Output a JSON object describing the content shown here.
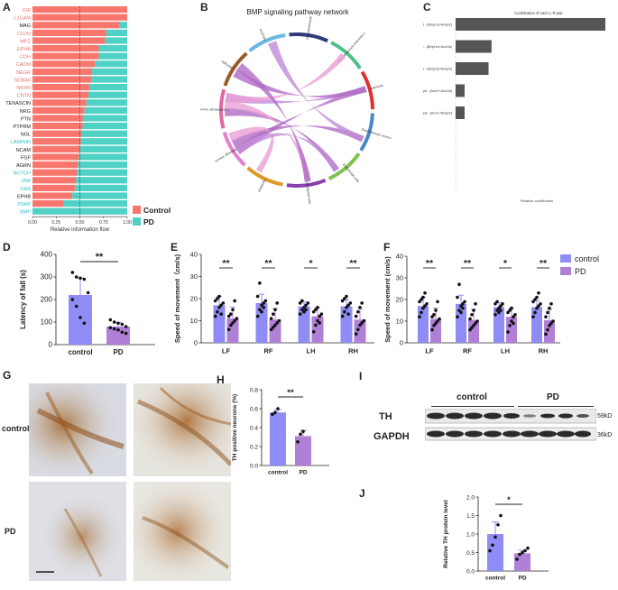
{
  "panels": {
    "A": "A",
    "B": "B",
    "C": "C",
    "D": "D",
    "E": "E",
    "F": "F",
    "G": "G",
    "H": "H",
    "I": "I",
    "J": "J"
  },
  "colors": {
    "control": "#f8766d",
    "pd": "#4fd1c5",
    "control_bar": "#8f8cf5",
    "pd_bar": "#b07fd6",
    "dark_bar": "#555555",
    "stain": "#b5732a"
  },
  "chart_data": [
    {
      "id": "A",
      "type": "bar",
      "orientation": "horizontal",
      "stacked": true,
      "xlabel": "Relative information flow",
      "xticks": [
        "0.00",
        "0.25",
        "0.50",
        "0.75",
        "1.00"
      ],
      "xlim": [
        0,
        1
      ],
      "reference_line": 0.5,
      "legend": [
        "Control",
        "PD"
      ],
      "legend_position": "right",
      "categories": [
        "IGF",
        "L1CAM",
        "MAG",
        "CLDN",
        "MPZ",
        "EPHA",
        "CDH",
        "CADM",
        "NEGR",
        "SEMA6",
        "NRXN",
        "CNTN",
        "TENASCIN",
        "NRG",
        "PTN",
        "PTPRM",
        "NGL",
        "LAMININ",
        "NCAM",
        "FGF",
        "AGRN",
        "NOTCH",
        "JAM",
        "GAS",
        "EPHB",
        "PSAP",
        "BMP"
      ],
      "label_colors": [
        "c",
        "c",
        "k",
        "c",
        "c",
        "c",
        "c",
        "c",
        "c",
        "c",
        "c",
        "c",
        "k",
        "k",
        "k",
        "k",
        "k",
        "p",
        "k",
        "k",
        "k",
        "p",
        "p",
        "p",
        "k",
        "p",
        "p"
      ],
      "series": [
        {
          "name": "Control",
          "values": [
            1.0,
            1.0,
            0.92,
            0.78,
            0.77,
            0.7,
            0.7,
            0.66,
            0.63,
            0.62,
            0.6,
            0.59,
            0.57,
            0.55,
            0.54,
            0.53,
            0.52,
            0.51,
            0.5,
            0.49,
            0.48,
            0.47,
            0.46,
            0.45,
            0.42,
            0.33,
            0.0
          ]
        },
        {
          "name": "PD",
          "values": [
            0.0,
            0.0,
            0.08,
            0.22,
            0.23,
            0.3,
            0.3,
            0.34,
            0.37,
            0.38,
            0.4,
            0.41,
            0.43,
            0.45,
            0.46,
            0.47,
            0.48,
            0.49,
            0.5,
            0.51,
            0.52,
            0.53,
            0.54,
            0.55,
            0.58,
            0.67,
            1.0
          ]
        }
      ]
    },
    {
      "id": "B",
      "type": "chord",
      "title": "BMP signaling pathway network",
      "sectors": [
        {
          "name": "Neurons",
          "color": "#6bb8e0"
        },
        {
          "name": "Oligodendrocyte",
          "color": "#2e3b7c"
        },
        {
          "name": "Oligodendrocyte precursor c",
          "color": "#4dbf8a"
        },
        {
          "name": "Astrocyte",
          "color": "#e03030"
        },
        {
          "name": "Dopaminergic neuron",
          "color": "#4a86c8"
        },
        {
          "name": "Endothelial cells",
          "color": "#7cc24a"
        },
        {
          "name": "Ependymal cells",
          "color": "#8a3fb0"
        },
        {
          "name": "Fibroblast",
          "color": "#e09a2a"
        },
        {
          "name": "GABAergic neuron",
          "color": "#e57fd2"
        },
        {
          "name": "Glutamatergic neuron",
          "color": "#e06aa0"
        },
        {
          "name": "Microglia",
          "color": "#9a5a2a"
        }
      ]
    },
    {
      "id": "C",
      "type": "bar",
      "orientation": "horizontal",
      "title": "Contribution of each L-R pair",
      "xlabel": "Relative contribution",
      "categories": [
        "Bmp6 - (Bmpr1a+Bmpr2)",
        "Bmp6 - (Bmpr1a+Acvr2a)",
        "Bmp6 - (Bmpr1b+Bmpr2)",
        "Bmp6 - (Acvr1+Acvr2a)",
        "Bmp6 - (Acvr1+Bmpr2)"
      ],
      "values": [
        1.0,
        0.24,
        0.22,
        0.06,
        0.06
      ]
    },
    {
      "id": "D",
      "type": "bar",
      "ylabel": "Latency of fall (s)",
      "yticks": [
        "0",
        "100",
        "200",
        "300",
        "400"
      ],
      "ylim": [
        0,
        400
      ],
      "categories": [
        "control",
        "PD"
      ],
      "values": [
        220,
        80
      ],
      "errors": [
        75,
        18
      ],
      "points": [
        [
          320,
          300,
          295,
          290,
          230,
          200,
          170,
          120,
          95
        ],
        [
          110,
          100,
          95,
          90,
          80,
          75,
          70,
          65,
          55,
          50
        ]
      ],
      "significance": "**"
    },
    {
      "id": "E",
      "type": "bar",
      "ylabel": "Speed of movement（cm/s)",
      "yticks": [
        "0",
        "10",
        "20",
        "30",
        "40"
      ],
      "ylim": [
        0,
        40
      ],
      "categories": [
        "LF",
        "RF",
        "LH",
        "RH"
      ],
      "series": [
        {
          "name": "control",
          "values": [
            17,
            18,
            16.5,
            16.5
          ],
          "errors": [
            4,
            4,
            2,
            3
          ],
          "points": [
            [
              12,
              14,
              16,
              17,
              18,
              19,
              20,
              21,
              13
            ],
            [
              12,
              15,
              17,
              18,
              19,
              21,
              27,
              14,
              16
            ],
            [
              13,
              15,
              16,
              17,
              18,
              18,
              19,
              14,
              15
            ],
            [
              12,
              14,
              16,
              17,
              18,
              19,
              20,
              21,
              13
            ]
          ]
        },
        {
          "name": "PD",
          "values": [
            11,
            10.5,
            12,
            10.5
          ],
          "errors": [
            5,
            5,
            4,
            5
          ],
          "points": [
            [
              6,
              8,
              9,
              10,
              11,
              12,
              13,
              15,
              19
            ],
            [
              6,
              7,
              8,
              9,
              10,
              11,
              13,
              15,
              18
            ],
            [
              5,
              8,
              10,
              12,
              13,
              14,
              15,
              16,
              9
            ],
            [
              4,
              6,
              8,
              9,
              10,
              12,
              14,
              16,
              18
            ]
          ]
        }
      ],
      "significance": [
        "**",
        "**",
        "*",
        "**"
      ]
    },
    {
      "id": "F",
      "type": "bar",
      "ylabel": "Speed of movement (cm/s)",
      "yticks": [
        "0",
        "10",
        "20",
        "30",
        "40"
      ],
      "ylim": [
        0,
        40
      ],
      "categories": [
        "LF",
        "RF",
        "LH",
        "RH"
      ],
      "legend": [
        "control",
        "PD"
      ],
      "legend_position": "top-right",
      "series": [
        {
          "name": "control",
          "values": [
            17,
            18,
            16.5,
            16.5
          ],
          "errors": [
            4,
            4,
            2,
            3
          ],
          "points": [
            [
              12,
              14,
              16,
              17,
              18,
              19,
              20,
              21,
              23
            ],
            [
              12,
              15,
              17,
              18,
              19,
              21,
              27,
              14,
              16
            ],
            [
              13,
              15,
              16,
              17,
              18,
              18,
              19,
              14,
              15
            ],
            [
              12,
              14,
              16,
              17,
              18,
              19,
              20,
              21,
              23
            ]
          ]
        },
        {
          "name": "PD",
          "values": [
            11,
            10.5,
            12,
            10.5
          ],
          "errors": [
            5,
            5,
            4,
            5
          ],
          "points": [
            [
              6,
              8,
              9,
              10,
              11,
              12,
              13,
              15,
              19
            ],
            [
              6,
              7,
              8,
              9,
              10,
              11,
              13,
              15,
              18
            ],
            [
              5,
              8,
              10,
              12,
              13,
              14,
              15,
              16,
              9
            ],
            [
              4,
              6,
              8,
              9,
              10,
              12,
              14,
              16,
              18
            ]
          ]
        }
      ],
      "significance": [
        "**",
        "**",
        "*",
        "**"
      ]
    },
    {
      "id": "H",
      "type": "bar",
      "ylabel": "TH positive neurons (%)",
      "yticks": [
        "0.0",
        "0.2",
        "0.4",
        "0.6",
        "0.8"
      ],
      "ylim": [
        0,
        0.8
      ],
      "categories": [
        "control",
        "PD"
      ],
      "values": [
        0.56,
        0.31
      ],
      "errors": [
        0.03,
        0.06
      ],
      "points": [
        [
          0.54,
          0.56,
          0.6
        ],
        [
          0.25,
          0.33,
          0.36
        ]
      ],
      "significance": "**"
    },
    {
      "id": "J",
      "type": "bar",
      "ylabel": "Relative TH protein level",
      "yticks": [
        "0.0",
        "0.5",
        "1.0",
        "1.5",
        "2.0"
      ],
      "ylim": [
        0,
        2.0
      ],
      "categories": [
        "control",
        "PD"
      ],
      "values": [
        1.0,
        0.48
      ],
      "errors": [
        0.33,
        0.08
      ],
      "points": [
        [
          0.55,
          0.7,
          0.92,
          1.25,
          1.5
        ],
        [
          0.32,
          0.45,
          0.5,
          0.55,
          0.62
        ]
      ],
      "significance": "*"
    }
  ],
  "panel_g": {
    "row_labels": [
      "control",
      "PD"
    ]
  },
  "panel_i": {
    "group_labels": [
      "control",
      "PD"
    ],
    "bands": [
      "TH",
      "GAPDH"
    ],
    "sizes": [
      "59kD",
      "36kD"
    ]
  }
}
